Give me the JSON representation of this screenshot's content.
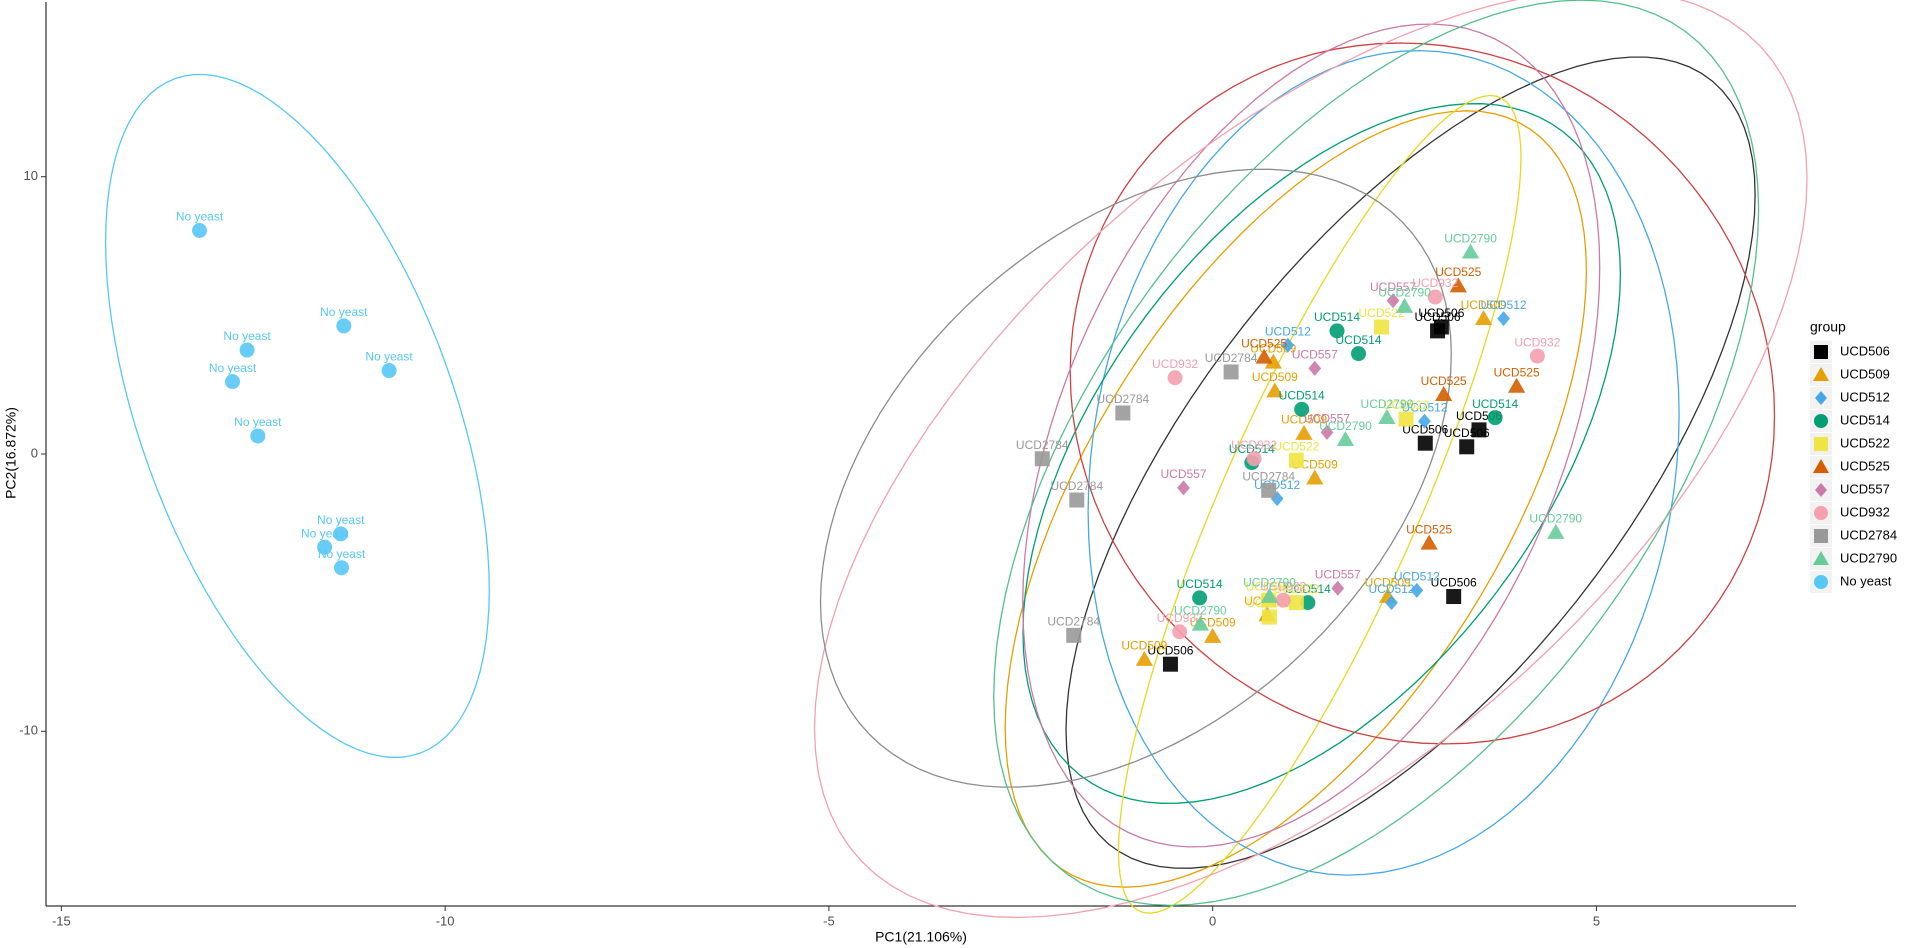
{
  "chart_data": {
    "type": "scatter",
    "xlabel": "PC1(21.106%)",
    "ylabel": "PC2(16.872%)",
    "legend_title": "group",
    "legend": "right",
    "xlim": [
      -15.2,
      7.6
    ],
    "ylim": [
      -16.3,
      16.3
    ],
    "xticks": [
      -15,
      -10,
      -5,
      0,
      5
    ],
    "yticks": [
      -10,
      0,
      10
    ],
    "ellipses": true,
    "series": [
      {
        "name": "UCD506",
        "color": "#000000",
        "ellipse_color": "#333333",
        "shape": "square",
        "x": [
          2.93,
          2.98,
          3.47,
          2.77,
          3.31,
          3.14,
          -0.55
        ],
        "values": [
          4.44,
          4.58,
          0.87,
          0.39,
          0.26,
          -5.14,
          -7.58
        ]
      },
      {
        "name": "UCD509",
        "color": "#E69F00",
        "ellipse_color": "#E69F00",
        "shape": "triangle",
        "x": [
          3.53,
          0.79,
          0.81,
          1.19,
          1.33,
          0,
          -0.89,
          2.28,
          0.71
        ],
        "values": [
          4.88,
          3.31,
          2.27,
          0.74,
          -0.87,
          -6.58,
          -7.41,
          -5.14,
          -5.8
        ]
      },
      {
        "name": "UCD512",
        "color": "#45A8E6",
        "ellipse_color": "#45A8E6",
        "shape": "diamond",
        "x": [
          3.79,
          0.98,
          0.84,
          2.76,
          2.66,
          2.33
        ],
        "values": [
          4.88,
          3.92,
          -1.61,
          1.18,
          -4.92,
          -5.36
        ]
      },
      {
        "name": "UCD514",
        "color": "#009E73",
        "ellipse_color": "#009E73",
        "shape": "circle",
        "x": [
          1.62,
          1.9,
          1.16,
          0.51,
          3.68,
          -0.17,
          1.24
        ],
        "values": [
          4.44,
          3.62,
          1.61,
          -0.31,
          1.31,
          -5.19,
          -5.36
        ]
      },
      {
        "name": "UCD522",
        "color": "#F0E442",
        "ellipse_color": "#E8D820",
        "shape": "square",
        "x": [
          2.2,
          2.52,
          1.09,
          0.73,
          1.09,
          0.74
        ],
        "values": [
          4.58,
          1.26,
          -0.22,
          -5.27,
          -5.36,
          -5.88
        ]
      },
      {
        "name": "UCD525",
        "color": "#D55E00",
        "ellipse_color": "#D04040",
        "shape": "triangle",
        "x": [
          3.2,
          0.67,
          3.01,
          3.96,
          2.82
        ],
        "values": [
          6.06,
          3.49,
          2.14,
          2.44,
          -3.22
        ]
      },
      {
        "name": "UCD557",
        "color": "#CC79A7",
        "ellipse_color": "#CC79A7",
        "shape": "diamond",
        "x": [
          1.33,
          2.35,
          1.49,
          -0.38,
          1.63
        ],
        "values": [
          3.09,
          5.53,
          0.78,
          -1.22,
          -4.84
        ]
      },
      {
        "name": "UCD932",
        "color": "#F4A0AE",
        "ellipse_color": "#F4A0AE",
        "shape": "circle",
        "x": [
          2.9,
          4.23,
          -0.49,
          0.54,
          -0.43,
          0.92
        ],
        "values": [
          5.66,
          3.53,
          2.75,
          -0.17,
          -6.41,
          -5.27
        ]
      },
      {
        "name": "UCD2784",
        "color": "#999999",
        "ellipse_color": "#8C8C8C",
        "shape": "square",
        "x": [
          0.24,
          -1.17,
          -2.22,
          -1.77,
          -1.81,
          0.73
        ],
        "values": [
          2.96,
          1.48,
          -0.17,
          -1.66,
          -6.54,
          -1.31
        ]
      },
      {
        "name": "UCD2790",
        "color": "#66CC99",
        "ellipse_color": "#55C08C",
        "shape": "triangle",
        "x": [
          3.36,
          2.5,
          2.27,
          1.73,
          4.47,
          -0.16,
          0.74
        ],
        "values": [
          7.28,
          5.32,
          1.31,
          0.52,
          -2.83,
          -6.14,
          -5.14
        ]
      },
      {
        "name": "No yeast",
        "color": "#56C8F5",
        "ellipse_color": "#56C8F5",
        "shape": "circle",
        "x": [
          -13.2,
          -12.58,
          -12.77,
          -11.32,
          -10.73,
          -12.44,
          -11.36,
          -11.57,
          -11.35
        ],
        "values": [
          8.06,
          3.75,
          2.61,
          4.62,
          3.01,
          0.65,
          -2.88,
          -3.36,
          -4.1
        ]
      }
    ]
  }
}
